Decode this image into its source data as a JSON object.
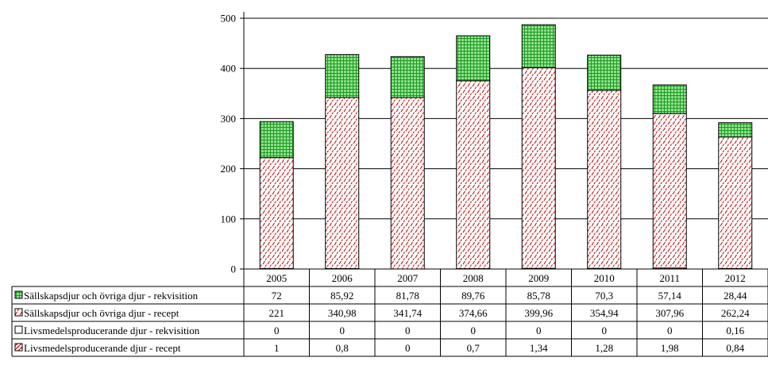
{
  "chart_data": {
    "type": "bar",
    "stacked": true,
    "categories": [
      "2005",
      "2006",
      "2007",
      "2008",
      "2009",
      "2010",
      "2011",
      "2012"
    ],
    "series": [
      {
        "name": "Livsmedelsproducerande djur - recept",
        "values": [
          "1",
          "0,8",
          "0",
          "0,7",
          "1,34",
          "1,28",
          "1,98",
          "0,84"
        ],
        "numeric": [
          1,
          0.8,
          0,
          0.7,
          1.34,
          1.28,
          1.98,
          0.84
        ],
        "pattern": "diagonal-hatch",
        "color": "#c00000"
      },
      {
        "name": "Livsmedelsproducerande djur - rekvisition",
        "values": [
          "0",
          "0",
          "0",
          "0",
          "0",
          "0",
          "0",
          "0,16"
        ],
        "numeric": [
          0,
          0,
          0,
          0,
          0,
          0,
          0,
          0.16
        ],
        "pattern": "solid",
        "color": "#ffffff"
      },
      {
        "name": "Sällskapsdjur och övriga djur - recept",
        "values": [
          "221",
          "340,98",
          "341,74",
          "374,66",
          "399,96",
          "354,94",
          "307,96",
          "262,24"
        ],
        "numeric": [
          221,
          340.98,
          341.74,
          374.66,
          399.96,
          354.94,
          307.96,
          262.24
        ],
        "pattern": "dashed-diagonal",
        "color": "#c00000"
      },
      {
        "name": "Sällskapsdjur och övriga djur - rekvisition",
        "values": [
          "72",
          "85,92",
          "81,78",
          "89,76",
          "85,78",
          "70,3",
          "57,14",
          "28,44"
        ],
        "numeric": [
          72,
          85.92,
          81.78,
          89.76,
          85.78,
          70.3,
          57.14,
          28.44
        ],
        "pattern": "grid",
        "color": "#33cc33"
      }
    ],
    "table_row_order": [
      3,
      2,
      1,
      0
    ],
    "ylim": [
      0,
      500
    ],
    "yticks": [
      "0",
      "100",
      "200",
      "300",
      "400",
      "500"
    ],
    "grid": true,
    "legend": "data-table-below",
    "xlabel": "",
    "ylabel": "",
    "title": ""
  }
}
